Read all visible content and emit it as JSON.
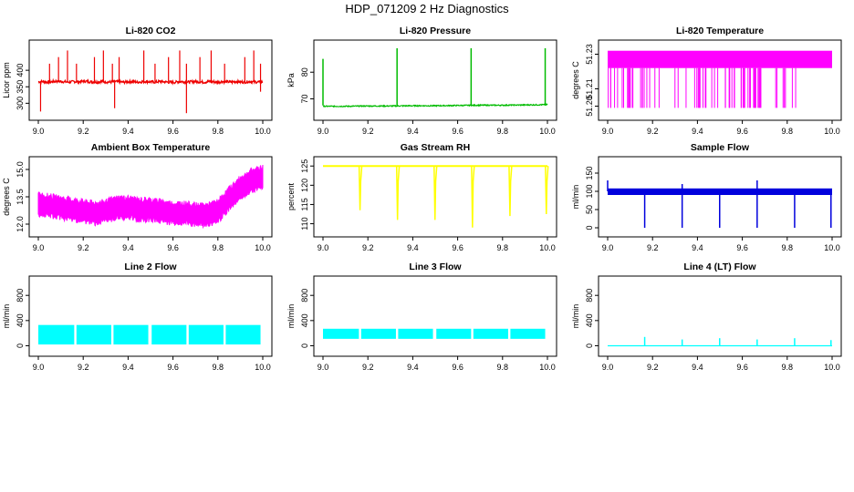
{
  "page": {
    "title": "HDP_071209  2 Hz Diagnostics"
  },
  "chart_data": [
    {
      "id": "co2",
      "type": "line",
      "title": "Li-820 CO2",
      "xlabel": "",
      "ylabel": "Licor ppm",
      "color": "#ee0000",
      "xlim": [
        9.0,
        10.0
      ],
      "ylim": [
        265,
        475
      ],
      "xticks": [
        "9.0",
        "9.2",
        "9.4",
        "9.6",
        "9.8",
        "10.0"
      ],
      "yticks": [
        "300",
        "350",
        "400"
      ],
      "series": [
        {
          "x": [
            9.0,
            9.02,
            9.04,
            9.06,
            9.08,
            9.1,
            9.12,
            9.14,
            9.16,
            9.18,
            9.2,
            9.22,
            9.24,
            9.26,
            9.28,
            9.3,
            9.32,
            9.34,
            9.36,
            9.38,
            9.4,
            9.42,
            9.44,
            9.46,
            9.48,
            9.5,
            9.52,
            9.54,
            9.56,
            9.58,
            9.6,
            9.62,
            9.64,
            9.66,
            9.68,
            9.7,
            9.72,
            9.74,
            9.76,
            9.78,
            9.8,
            9.82,
            9.84,
            9.86,
            9.88,
            9.9,
            9.92,
            9.94,
            9.96,
            9.98,
            10.0
          ],
          "values": [
            365,
            366,
            364,
            365,
            367,
            366,
            365,
            364,
            366,
            365,
            367,
            366,
            365,
            364,
            366,
            365,
            364,
            366,
            365,
            364,
            365,
            366,
            364,
            365,
            366,
            365,
            364,
            366,
            365,
            364,
            363,
            365,
            366,
            364,
            365,
            366,
            365,
            364,
            366,
            365,
            364,
            366,
            365,
            364,
            366,
            365,
            364,
            366,
            365,
            364,
            365
          ]
        }
      ]
    },
    {
      "id": "pressure",
      "type": "line",
      "title": "Li-820 Pressure",
      "xlabel": "",
      "ylabel": "kPa",
      "color": "#00bb00",
      "xlim": [
        9.0,
        10.0
      ],
      "ylim": [
        64,
        90
      ],
      "xticks": [
        "9.0",
        "9.2",
        "9.4",
        "9.6",
        "9.8",
        "10.0"
      ],
      "yticks": [
        "70",
        "80"
      ],
      "series": [
        {
          "x": [
            9.0,
            9.1,
            9.2,
            9.3,
            9.4,
            9.5,
            9.6,
            9.7,
            9.8,
            9.9,
            10.0
          ],
          "values": [
            67.2,
            67.2,
            67.3,
            67.3,
            67.4,
            67.4,
            67.5,
            67.6,
            67.6,
            67.7,
            67.8
          ]
        }
      ]
    },
    {
      "id": "licor_temp",
      "type": "line",
      "title": "Li-820 Temperature",
      "xlabel": "",
      "ylabel": "degrees C",
      "color": "#ff00ff",
      "xlim": [
        9.0,
        10.0
      ],
      "ylim": [
        51.195,
        51.235
      ],
      "xticks": [
        "9.0",
        "9.2",
        "9.4",
        "9.6",
        "9.8",
        "10.0"
      ],
      "yticks": [
        "51.20",
        "51.21",
        "51.23"
      ],
      "series": [
        {
          "x": [
            9.0,
            10.0
          ],
          "values": [
            51.22,
            51.22
          ]
        }
      ]
    },
    {
      "id": "box_temp",
      "type": "line",
      "title": "Ambient Box Temperature",
      "xlabel": "",
      "ylabel": "degrees C",
      "color": "#ff00ff",
      "xlim": [
        9.0,
        10.0
      ],
      "ylim": [
        11.6,
        15.4
      ],
      "xticks": [
        "9.0",
        "9.2",
        "9.4",
        "9.6",
        "9.8",
        "10.0"
      ],
      "yticks": [
        "12.0",
        "13.5",
        "15.0"
      ],
      "series": [
        {
          "x": [
            9.0,
            9.05,
            9.1,
            9.15,
            9.2,
            9.25,
            9.3,
            9.35,
            9.4,
            9.45,
            9.5,
            9.55,
            9.6,
            9.65,
            9.7,
            9.75,
            9.8,
            9.85,
            9.9,
            9.95,
            10.0
          ],
          "values": [
            13.1,
            13.0,
            12.9,
            12.8,
            12.7,
            12.6,
            12.7,
            12.9,
            12.9,
            12.8,
            12.8,
            12.7,
            12.6,
            12.6,
            12.5,
            12.5,
            12.7,
            13.4,
            14.0,
            14.4,
            14.6
          ]
        }
      ]
    },
    {
      "id": "rh",
      "type": "line",
      "title": "Gas Stream RH",
      "xlabel": "",
      "ylabel": "percent",
      "color": "#ffff00",
      "xlim": [
        9.0,
        10.0
      ],
      "ylim": [
        108,
        126
      ],
      "xticks": [
        "9.0",
        "9.2",
        "9.4",
        "9.6",
        "9.8",
        "10.0"
      ],
      "yticks": [
        "110",
        "115",
        "120",
        "125"
      ],
      "series": [
        {
          "x": [
            9.0,
            10.0
          ],
          "values": [
            125,
            125
          ]
        }
      ]
    },
    {
      "id": "sample_flow",
      "type": "line",
      "title": "Sample Flow",
      "xlabel": "",
      "ylabel": "ml/min",
      "color": "#0000dd",
      "xlim": [
        9.0,
        10.0
      ],
      "ylim": [
        -10,
        180
      ],
      "xticks": [
        "9.0",
        "9.2",
        "9.4",
        "9.6",
        "9.8",
        "10.0"
      ],
      "yticks": [
        "0",
        "50",
        "100",
        "150"
      ],
      "series": [
        {
          "x": [
            9.0,
            10.0
          ],
          "values": [
            100,
            100
          ]
        }
      ]
    },
    {
      "id": "line2",
      "type": "line",
      "title": "Line 2 Flow",
      "xlabel": "",
      "ylabel": "ml/min",
      "color": "#00ffff",
      "xlim": [
        9.0,
        10.0
      ],
      "ylim": [
        -80,
        1020
      ],
      "xticks": [
        "9.0",
        "9.2",
        "9.4",
        "9.6",
        "9.8",
        "10.0"
      ],
      "yticks": [
        "0",
        "400",
        "800"
      ],
      "series": [
        {
          "x": [
            9.0,
            10.0
          ],
          "values": [
            180,
            180
          ]
        }
      ]
    },
    {
      "id": "line3",
      "type": "line",
      "title": "Line 3 Flow",
      "xlabel": "",
      "ylabel": "ml/min",
      "color": "#00ffff",
      "xlim": [
        9.0,
        10.0
      ],
      "ylim": [
        -80,
        1020
      ],
      "xticks": [
        "9.0",
        "9.2",
        "9.4",
        "9.6",
        "9.8",
        "10.0"
      ],
      "yticks": [
        "0",
        "400",
        "800"
      ],
      "series": [
        {
          "x": [
            9.0,
            10.0
          ],
          "values": [
            200,
            200
          ]
        }
      ]
    },
    {
      "id": "line4",
      "type": "line",
      "title": "Line 4 (LT) Flow",
      "xlabel": "",
      "ylabel": "ml/min",
      "color": "#00ffff",
      "xlim": [
        9.0,
        10.0
      ],
      "ylim": [
        -80,
        1020
      ],
      "xticks": [
        "9.0",
        "9.2",
        "9.4",
        "9.6",
        "9.8",
        "10.0"
      ],
      "yticks": [
        "0",
        "400",
        "800"
      ],
      "series": [
        {
          "x": [
            9.0,
            9.16,
            9.33,
            9.5,
            9.66,
            9.83,
            10.0
          ],
          "values": [
            0,
            140,
            100,
            120,
            100,
            120,
            0
          ]
        }
      ]
    }
  ]
}
